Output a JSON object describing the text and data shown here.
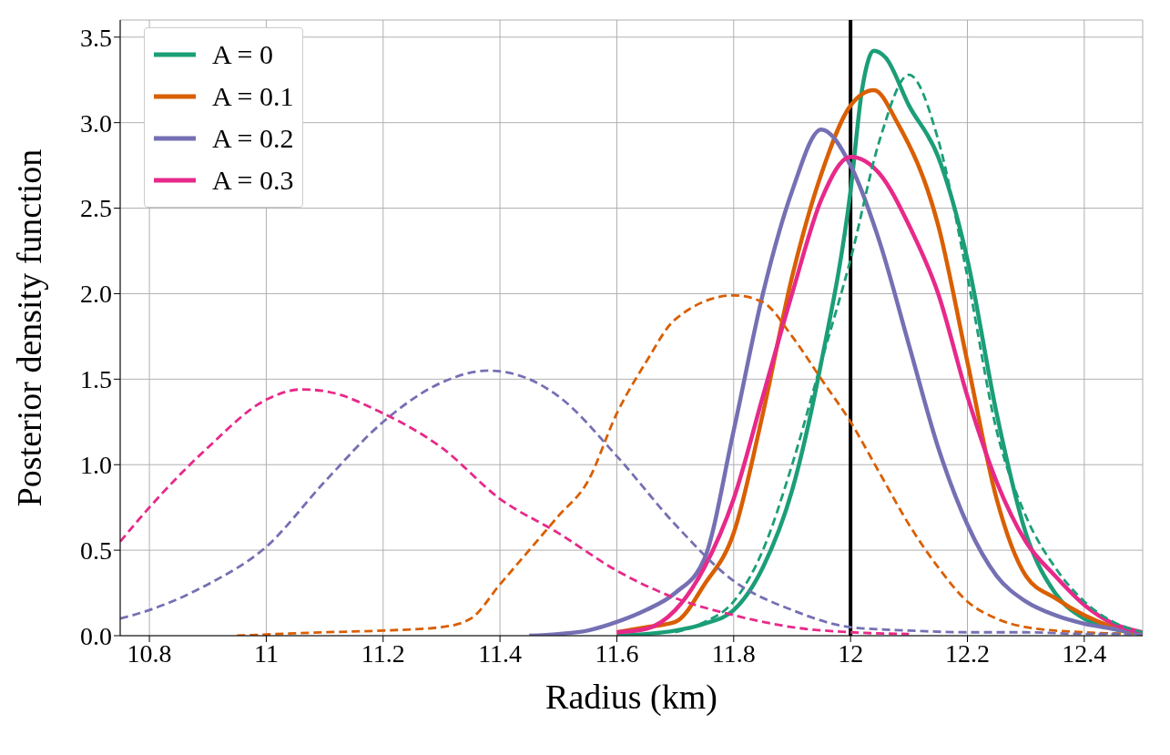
{
  "chart_data": {
    "type": "line",
    "xlabel": "Radius (km)",
    "ylabel": "Posterior density function",
    "xlim": [
      10.75,
      12.5
    ],
    "xticks": [
      10.8,
      11,
      11.2,
      11.4,
      11.6,
      11.8,
      12,
      12.2,
      12.4
    ],
    "ylim": [
      0,
      3.6
    ],
    "yticks": [
      {
        "value": 0,
        "label": "0.0"
      },
      {
        "value": 0.5,
        "label": "0.5"
      },
      {
        "value": 1,
        "label": "1.0"
      },
      {
        "value": 1.5,
        "label": "1.5"
      },
      {
        "value": 2,
        "label": "2.0"
      },
      {
        "value": 2.5,
        "label": "2.5"
      },
      {
        "value": 3,
        "label": "3.0"
      },
      {
        "value": 3.5,
        "label": "3.5"
      }
    ],
    "grid": true,
    "legend": "top left",
    "marker": "none",
    "ref_lines": [
      {
        "axis": "x",
        "value": 12,
        "color": "#000000",
        "line_style": "solid"
      }
    ],
    "series": [
      {
        "name": "A = 0",
        "color": "#1b9e77",
        "line_style": "solid",
        "x": [
          11.6,
          11.7,
          11.75,
          11.8,
          11.85,
          11.9,
          11.95,
          12.0,
          12.02,
          12.04,
          12.06,
          12.1,
          12.15,
          12.2,
          12.25,
          12.3,
          12.35,
          12.4,
          12.45,
          12.5
        ],
        "values": [
          0,
          0.03,
          0.07,
          0.15,
          0.4,
          0.85,
          1.6,
          2.6,
          3.2,
          3.42,
          3.38,
          3.1,
          2.8,
          2.2,
          1.3,
          0.6,
          0.25,
          0.1,
          0.04,
          0.01
        ]
      },
      {
        "name": "A = 0.1",
        "color": "#d95f02",
        "line_style": "solid",
        "x": [
          11.6,
          11.65,
          11.7,
          11.75,
          11.8,
          11.85,
          11.9,
          11.95,
          12.0,
          12.04,
          12.08,
          12.15,
          12.2,
          12.25,
          12.3,
          12.35,
          12.4,
          12.45,
          12.5
        ],
        "values": [
          0.02,
          0.05,
          0.08,
          0.3,
          0.6,
          1.3,
          2.1,
          2.7,
          3.1,
          3.19,
          3.0,
          2.4,
          1.6,
          0.8,
          0.35,
          0.22,
          0.12,
          0.05,
          0.01
        ]
      },
      {
        "name": "A = 0.2",
        "color": "#7570b3",
        "line_style": "solid",
        "x": [
          11.45,
          11.5,
          11.55,
          11.6,
          11.65,
          11.7,
          11.75,
          11.8,
          11.85,
          11.9,
          11.95,
          12.0,
          12.05,
          12.1,
          12.15,
          12.2,
          12.25,
          12.3,
          12.35,
          12.4,
          12.45,
          12.5
        ],
        "values": [
          0,
          0.01,
          0.03,
          0.08,
          0.15,
          0.25,
          0.45,
          1.2,
          2.0,
          2.6,
          2.96,
          2.75,
          2.3,
          1.7,
          1.1,
          0.65,
          0.35,
          0.2,
          0.12,
          0.07,
          0.04,
          0.01
        ]
      },
      {
        "name": "A = 0.3",
        "color": "#e7298a",
        "line_style": "solid",
        "x": [
          11.6,
          11.65,
          11.7,
          11.75,
          11.8,
          11.85,
          11.9,
          11.95,
          12.0,
          12.05,
          12.1,
          12.15,
          12.2,
          12.25,
          12.3,
          12.35,
          12.4,
          12.45,
          12.5
        ],
        "values": [
          0.02,
          0.04,
          0.15,
          0.4,
          0.8,
          1.4,
          2.0,
          2.55,
          2.8,
          2.7,
          2.4,
          2.0,
          1.4,
          0.9,
          0.55,
          0.35,
          0.18,
          0.07,
          0.02
        ]
      },
      {
        "color": "#1b9e77",
        "line_style": "dashed",
        "x": [
          11.7,
          11.75,
          11.8,
          11.85,
          11.9,
          11.95,
          12.0,
          12.05,
          12.1,
          12.15,
          12.2,
          12.25,
          12.3,
          12.35,
          12.4,
          12.45,
          12.5
        ],
        "values": [
          0.02,
          0.08,
          0.2,
          0.5,
          1.0,
          1.6,
          2.2,
          2.9,
          3.28,
          2.9,
          2.1,
          1.2,
          0.7,
          0.4,
          0.2,
          0.08,
          0.02
        ]
      },
      {
        "color": "#d95f02",
        "line_style": "dashed",
        "x": [
          10.95,
          11.1,
          11.2,
          11.3,
          11.35,
          11.4,
          11.45,
          11.5,
          11.55,
          11.6,
          11.65,
          11.7,
          11.8,
          11.85,
          11.9,
          11.95,
          12.0,
          12.05,
          12.1,
          12.15,
          12.2,
          12.25,
          12.3,
          12.4,
          12.5
        ],
        "values": [
          0,
          0.02,
          0.03,
          0.05,
          0.1,
          0.3,
          0.5,
          0.7,
          0.9,
          1.3,
          1.6,
          1.85,
          1.99,
          1.95,
          1.75,
          1.5,
          1.25,
          0.95,
          0.65,
          0.4,
          0.2,
          0.1,
          0.05,
          0.02,
          0.01
        ]
      },
      {
        "color": "#7570b3",
        "line_style": "dashed",
        "x": [
          10.75,
          10.8,
          10.9,
          11.0,
          11.1,
          11.2,
          11.3,
          11.38,
          11.45,
          11.5,
          11.6,
          11.7,
          11.8,
          11.9,
          12.0,
          12.1,
          12.2,
          12.3,
          12.4,
          12.5
        ],
        "values": [
          0.1,
          0.15,
          0.3,
          0.52,
          0.9,
          1.25,
          1.48,
          1.55,
          1.5,
          1.4,
          1.05,
          0.65,
          0.32,
          0.15,
          0.05,
          0.03,
          0.02,
          0.02,
          0.01,
          0.01
        ]
      },
      {
        "color": "#e7298a",
        "line_style": "dashed",
        "x": [
          10.75,
          10.8,
          10.9,
          11.0,
          11.06,
          11.1,
          11.2,
          11.3,
          11.4,
          11.5,
          11.6,
          11.7,
          11.8,
          11.9,
          12.0,
          12.1
        ],
        "values": [
          0.55,
          0.75,
          1.1,
          1.38,
          1.44,
          1.43,
          1.3,
          1.1,
          0.8,
          0.6,
          0.38,
          0.22,
          0.12,
          0.05,
          0.02,
          0.01
        ]
      }
    ]
  }
}
